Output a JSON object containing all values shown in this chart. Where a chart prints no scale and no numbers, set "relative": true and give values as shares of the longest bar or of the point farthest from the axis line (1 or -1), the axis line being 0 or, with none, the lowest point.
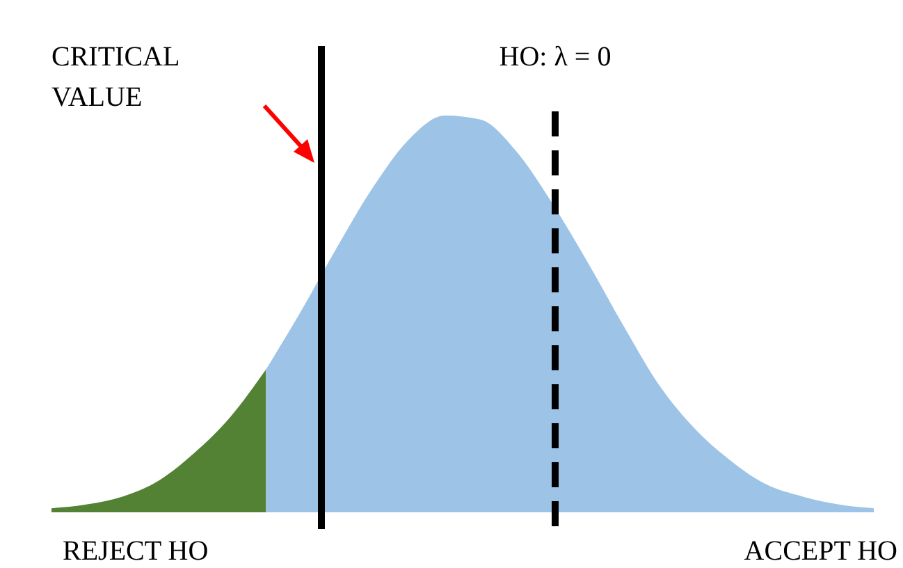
{
  "chart_data": {
    "type": "area",
    "relative": true,
    "tick_labels": false,
    "categories": [
      null,
      null,
      null,
      null,
      null,
      null,
      null,
      null,
      null,
      null,
      null,
      null,
      null,
      null,
      null,
      null,
      null,
      null,
      null,
      null,
      null,
      null,
      null,
      null
    ],
    "series": [
      {
        "color": "#548235",
        "values": [
          0.01,
          0.02,
          0.04,
          0.08,
          0.15,
          0.24,
          0.36,
          null,
          null,
          null,
          null,
          null,
          null,
          null,
          null,
          null,
          null,
          null,
          null,
          null,
          null,
          null,
          null,
          null
        ]
      },
      {
        "color": "#9dc3e6",
        "values": [
          null,
          null,
          null,
          null,
          null,
          null,
          0.36,
          0.51,
          0.67,
          0.82,
          0.94,
          1,
          0.99,
          0.91,
          0.78,
          0.63,
          0.47,
          0.32,
          0.21,
          0.13,
          0.07,
          0.04,
          0.02,
          0.01
        ]
      }
    ],
    "annotations": [
      "CRITICAL VALUE",
      "HO: λ = 0",
      "REJECT HO",
      "ACCEPT HO"
    ]
  }
}
